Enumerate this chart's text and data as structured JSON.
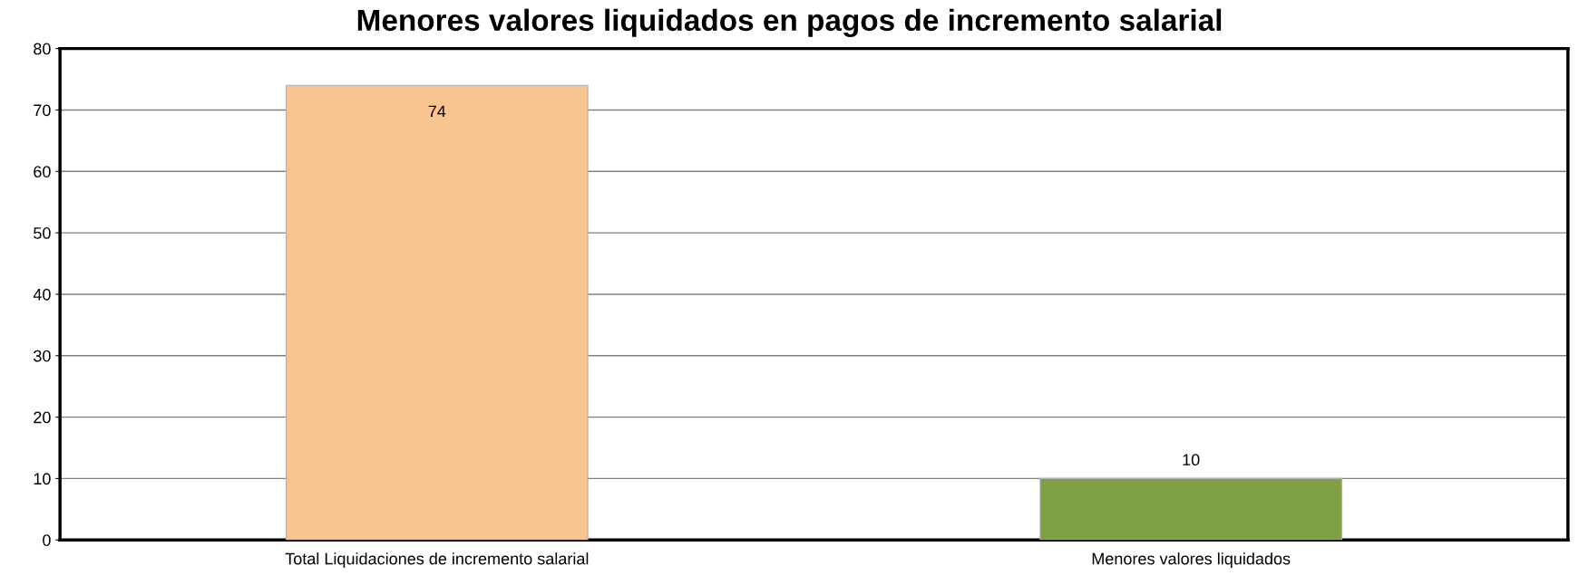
{
  "chart_data": {
    "type": "bar",
    "title": "Menores valores liquidados en pagos de incremento salarial",
    "categories": [
      "Total Liquidaciones de incremento salarial",
      "Menores valores liquidados"
    ],
    "values": [
      74,
      10
    ],
    "colors": [
      "#fac48f",
      "#7f9f45"
    ],
    "ylim": [
      0,
      80
    ],
    "yticks": [
      0,
      10,
      20,
      30,
      40,
      50,
      60,
      70,
      80
    ],
    "grid": "y",
    "data_labels": true
  }
}
